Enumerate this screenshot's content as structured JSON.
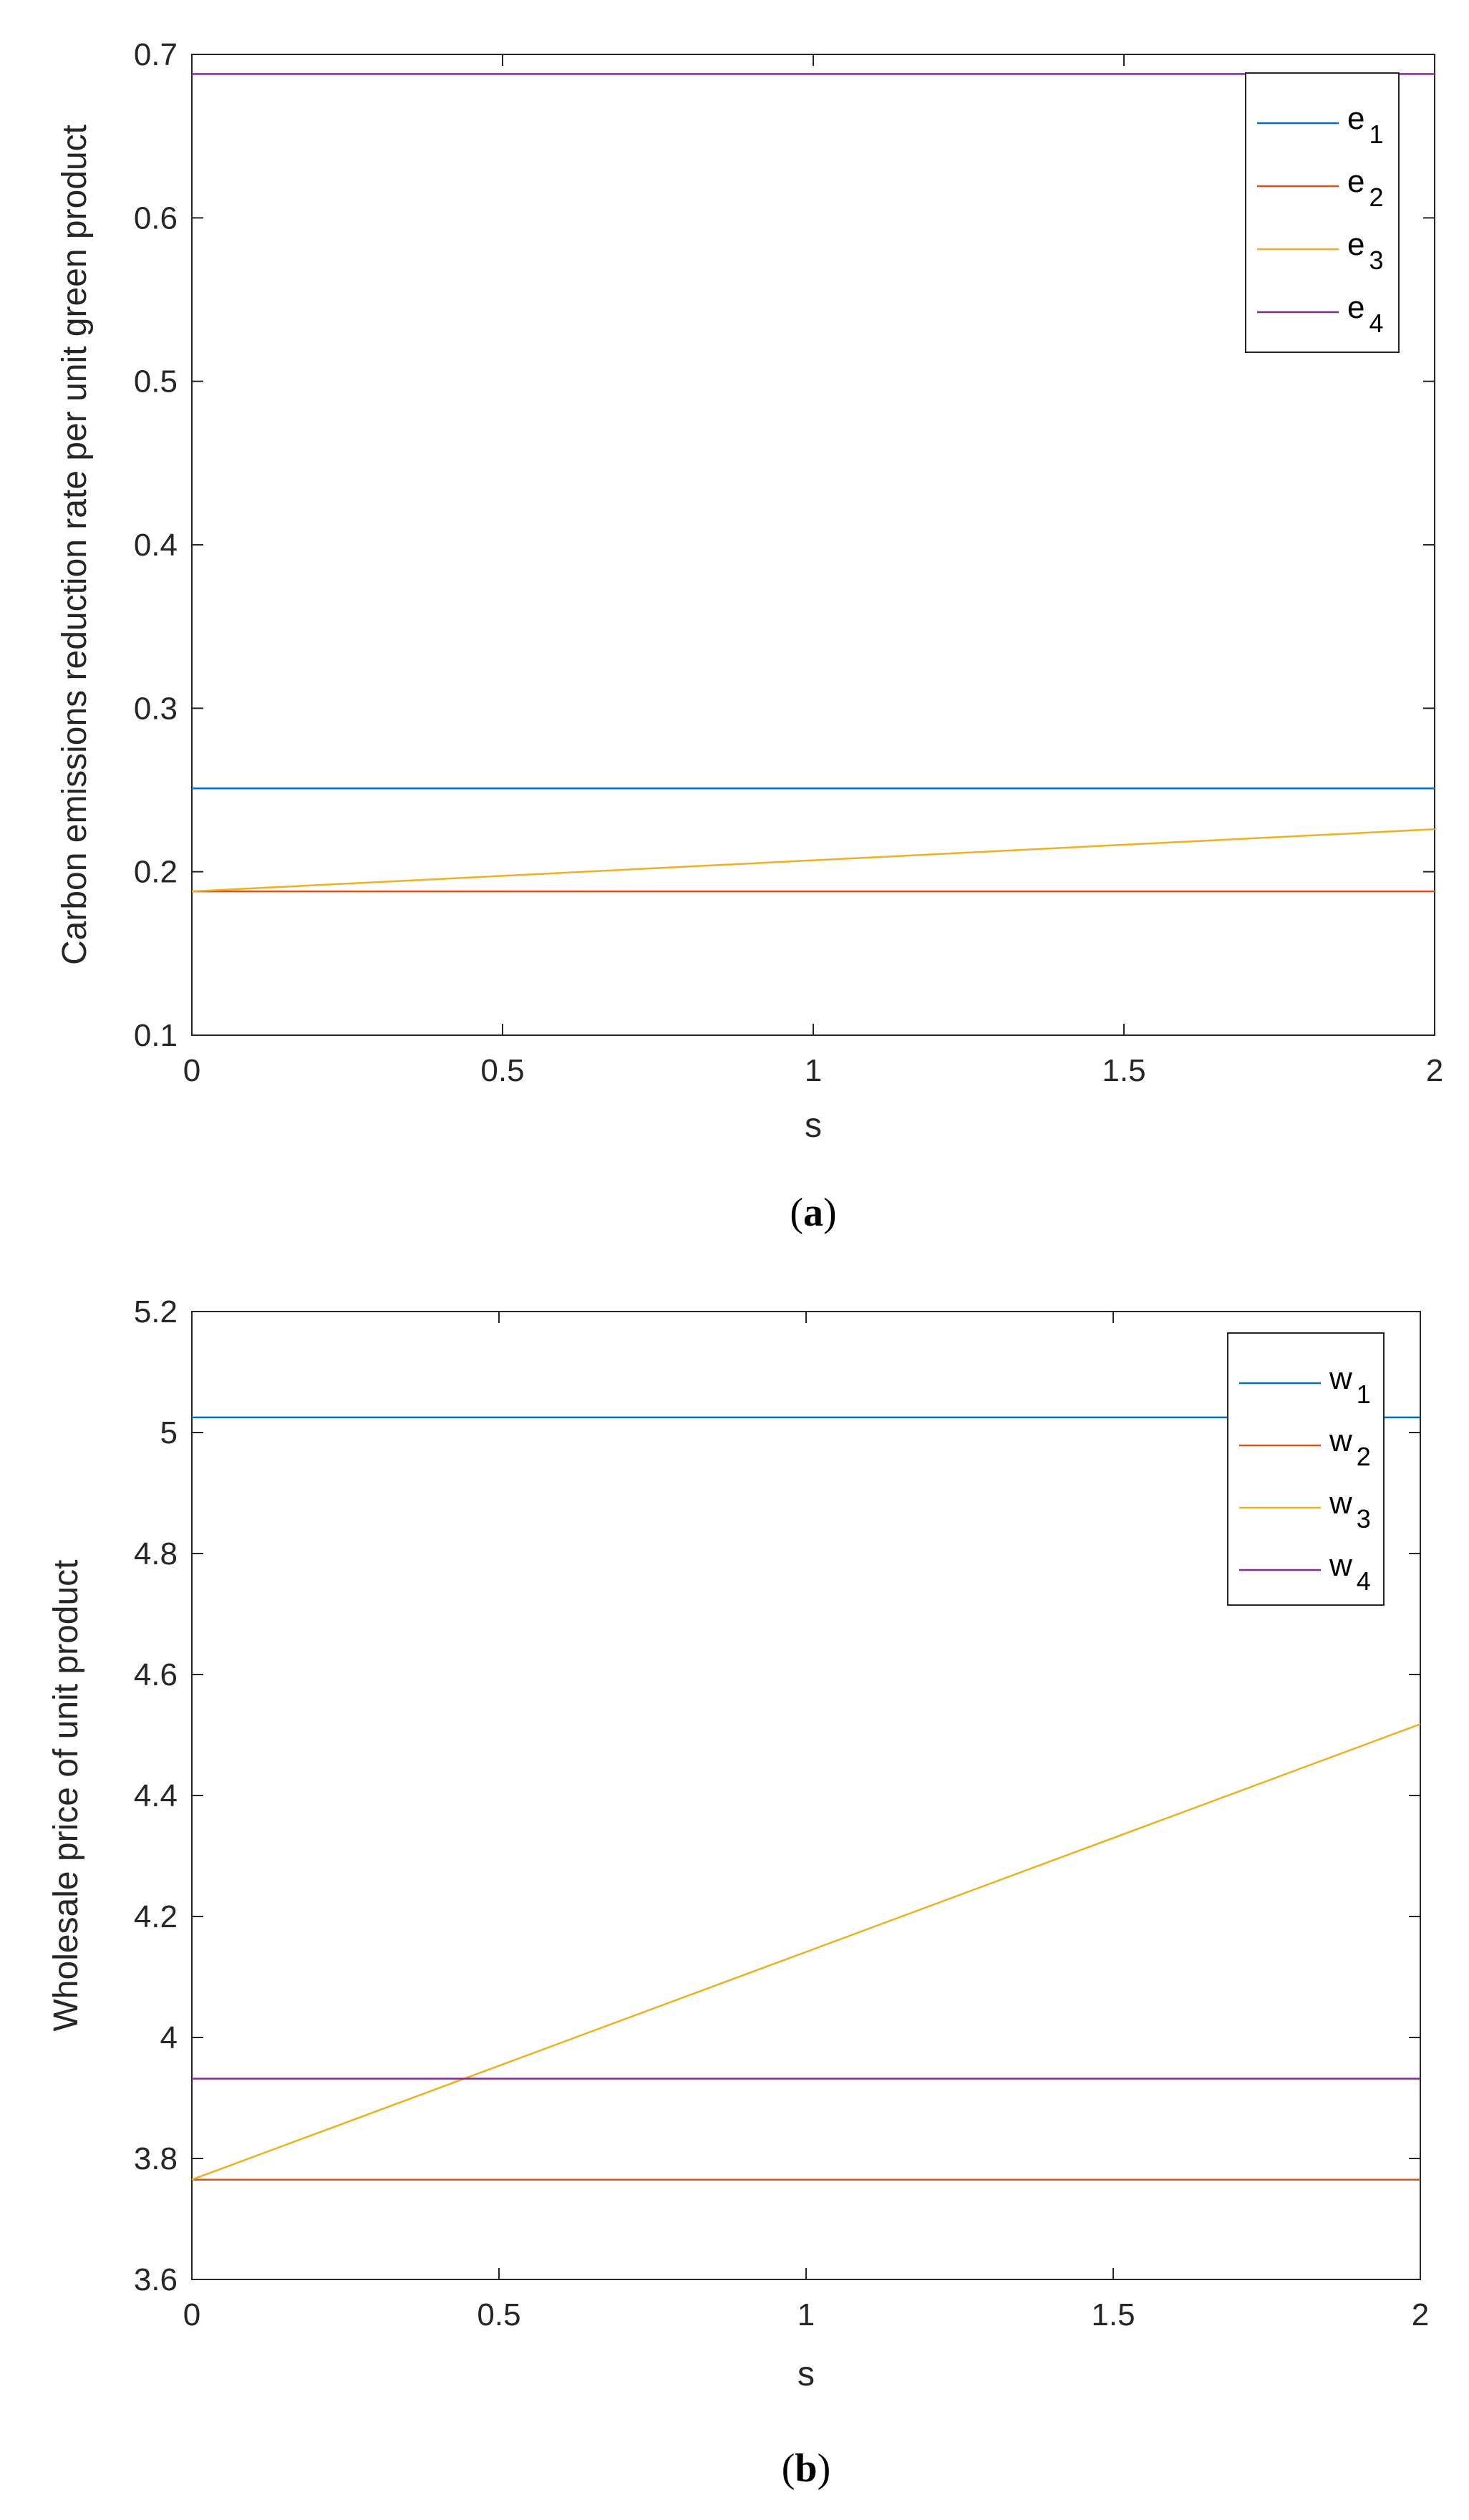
{
  "colors": {
    "series1": "#0072BD",
    "series2": "#D95319",
    "series3": "#EDB120",
    "series4": "#7E2F8E",
    "axis": "#262626"
  },
  "chart_data": [
    {
      "type": "line",
      "caption": "a",
      "xlabel": "s",
      "ylabel": "Carbon emissions reduction rate per unit green product",
      "xlim": [
        0,
        2
      ],
      "ylim": [
        0.1,
        0.7
      ],
      "xticks": [
        "0",
        "0.5",
        "1",
        "1.5",
        "2"
      ],
      "yticks": [
        "0.1",
        "0.2",
        "0.3",
        "0.4",
        "0.5",
        "0.6",
        "0.7"
      ],
      "legend_position": "top-right",
      "series": [
        {
          "name": "e",
          "sub": "1",
          "x": [
            0,
            2
          ],
          "values": [
            0.251,
            0.251
          ]
        },
        {
          "name": "e",
          "sub": "2",
          "x": [
            0,
            2
          ],
          "values": [
            0.188,
            0.188
          ]
        },
        {
          "name": "e",
          "sub": "3",
          "x": [
            0,
            2
          ],
          "values": [
            0.188,
            0.226
          ]
        },
        {
          "name": "e",
          "sub": "4",
          "x": [
            0,
            2
          ],
          "values": [
            0.688,
            0.688
          ]
        }
      ]
    },
    {
      "type": "line",
      "caption": "b",
      "xlabel": "s",
      "ylabel": "Wholesale price of unit product",
      "xlim": [
        0,
        2
      ],
      "ylim": [
        3.6,
        5.2
      ],
      "xticks": [
        "0",
        "0.5",
        "1",
        "1.5",
        "2"
      ],
      "yticks": [
        "3.6",
        "3.8",
        "4",
        "4.2",
        "4.4",
        "4.6",
        "4.8",
        "5",
        "5.2"
      ],
      "legend_position": "top-right",
      "series": [
        {
          "name": "w",
          "sub": "1",
          "x": [
            0,
            2
          ],
          "values": [
            5.025,
            5.025
          ]
        },
        {
          "name": "w",
          "sub": "2",
          "x": [
            0,
            2
          ],
          "values": [
            3.765,
            3.765
          ]
        },
        {
          "name": "w",
          "sub": "3",
          "x": [
            0,
            2
          ],
          "values": [
            3.765,
            4.518
          ]
        },
        {
          "name": "w",
          "sub": "4",
          "x": [
            0,
            2
          ],
          "values": [
            3.932,
            3.932
          ]
        }
      ]
    }
  ]
}
